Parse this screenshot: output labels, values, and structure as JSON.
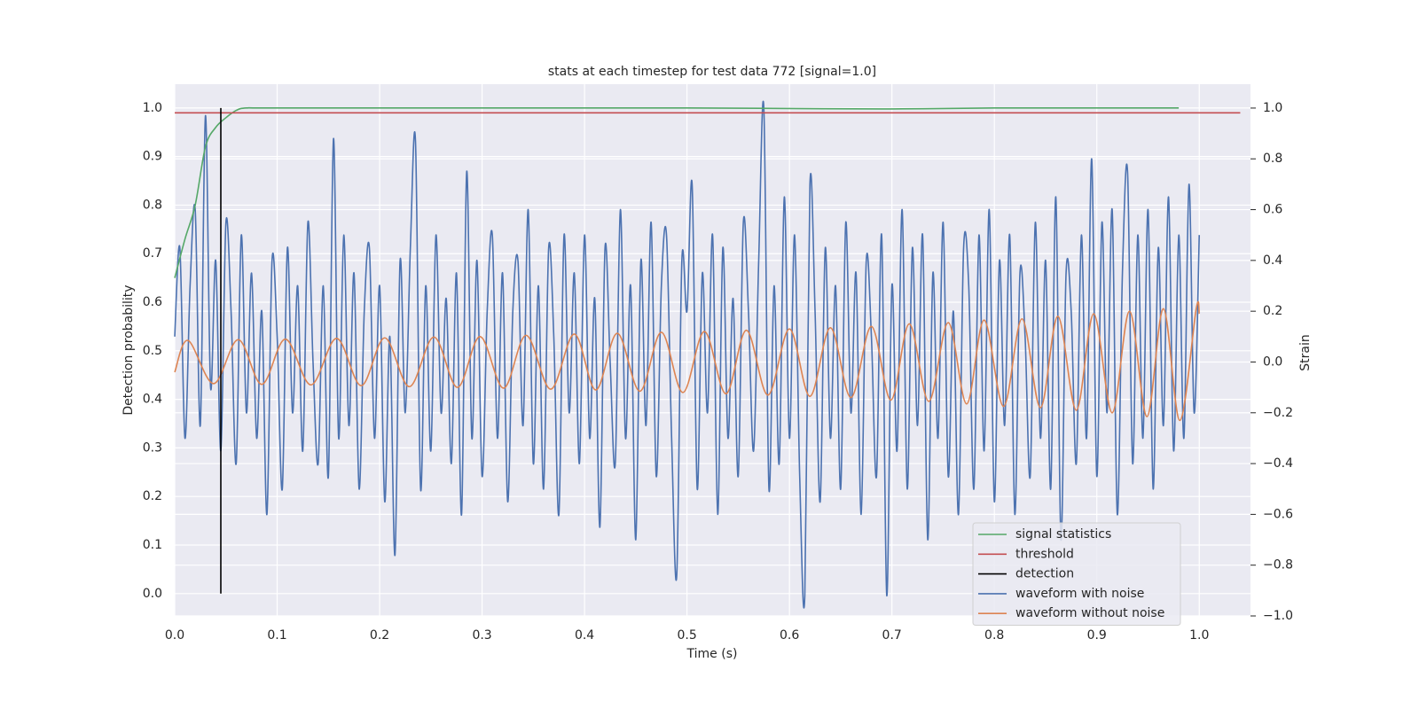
{
  "chart_data": {
    "type": "line",
    "title": "stats at each timestep for test data 772 [signal=1.0]",
    "xlabel": "Time (s)",
    "ylabel": "Detection probability",
    "y2label": "Strain",
    "xlim": [
      0,
      1.05
    ],
    "ylim": [
      -0.046,
      1.049
    ],
    "y2lim": [
      -1.0,
      1.094
    ],
    "xticks": [
      {
        "value": 0,
        "label": "0.0"
      },
      0.1,
      0.2,
      0.3,
      0.4,
      0.5,
      0.6,
      0.7,
      0.8,
      0.9,
      {
        "value": 1,
        "label": "1.0"
      }
    ],
    "yticks": [
      {
        "value": 0,
        "label": "0.0"
      },
      0.1,
      0.2,
      0.3,
      0.4,
      0.5,
      0.6,
      0.7,
      0.8,
      0.9,
      {
        "value": 1,
        "label": "1.0"
      }
    ],
    "y2ticks": [
      {
        "value": -1,
        "label": "−1.0"
      },
      {
        "value": -0.8,
        "label": "−0.8"
      },
      {
        "value": -0.6,
        "label": "−0.6"
      },
      {
        "value": -0.4,
        "label": "−0.4"
      },
      {
        "value": -0.2,
        "label": "−0.2"
      },
      {
        "value": 0,
        "label": "0.0"
      },
      0.2,
      0.4,
      0.6,
      0.8,
      {
        "value": 1,
        "label": "1.0"
      }
    ],
    "grid": true,
    "legend": "lower right",
    "series": [
      {
        "name": "signal statistics",
        "color": "#55a868",
        "x": [
          0,
          0.01,
          0.02,
          0.03,
          0.04,
          0.05,
          0.06,
          0.07,
          0.1,
          0.3,
          0.5,
          0.6,
          0.7,
          0.8,
          0.98
        ],
        "values": [
          0.65,
          0.73,
          0.8,
          0.92,
          0.96,
          0.98,
          0.995,
          1.0,
          1.0,
          1.0,
          1.0,
          0.999,
          0.998,
          1.0,
          1.0
        ]
      },
      {
        "name": "threshold",
        "color": "#c44e52",
        "x": [
          0,
          1.04
        ],
        "values": [
          0.99,
          0.99
        ]
      },
      {
        "name": "detection",
        "color": "#000000",
        "x": [
          0.045,
          0.045
        ],
        "values": [
          0,
          1
        ]
      },
      {
        "name": "waveform with noise",
        "color": "#4c72b0",
        "axis": "y2",
        "x": [
          0,
          0.005,
          0.01,
          0.015,
          0.02,
          0.025,
          0.03,
          0.035,
          0.04,
          0.045,
          0.05,
          0.055,
          0.06,
          0.065,
          0.07,
          0.075,
          0.08,
          0.085,
          0.09,
          0.095,
          0.1,
          0.105,
          0.11,
          0.115,
          0.12,
          0.125,
          0.13,
          0.135,
          0.14,
          0.145,
          0.15,
          0.155,
          0.16,
          0.165,
          0.17,
          0.175,
          0.18,
          0.185,
          0.19,
          0.195,
          0.2,
          0.205,
          0.21,
          0.215,
          0.22,
          0.225,
          0.23,
          0.235,
          0.24,
          0.245,
          0.25,
          0.255,
          0.26,
          0.265,
          0.27,
          0.275,
          0.28,
          0.285,
          0.29,
          0.295,
          0.3,
          0.305,
          0.31,
          0.315,
          0.32,
          0.325,
          0.33,
          0.335,
          0.34,
          0.345,
          0.35,
          0.355,
          0.36,
          0.365,
          0.37,
          0.375,
          0.38,
          0.385,
          0.39,
          0.395,
          0.4,
          0.405,
          0.41,
          0.415,
          0.42,
          0.425,
          0.43,
          0.435,
          0.44,
          0.445,
          0.45,
          0.455,
          0.46,
          0.465,
          0.47,
          0.475,
          0.48,
          0.485,
          0.49,
          0.495,
          0.5,
          0.505,
          0.51,
          0.515,
          0.52,
          0.525,
          0.53,
          0.535,
          0.54,
          0.545,
          0.55,
          0.555,
          0.56,
          0.565,
          0.57,
          0.575,
          0.58,
          0.585,
          0.59,
          0.595,
          0.6,
          0.605,
          0.61,
          0.615,
          0.62,
          0.625,
          0.63,
          0.635,
          0.64,
          0.645,
          0.65,
          0.655,
          0.66,
          0.665,
          0.67,
          0.675,
          0.68,
          0.685,
          0.69,
          0.695,
          0.7,
          0.705,
          0.71,
          0.715,
          0.72,
          0.725,
          0.73,
          0.735,
          0.74,
          0.745,
          0.75,
          0.755,
          0.76,
          0.765,
          0.77,
          0.775,
          0.78,
          0.785,
          0.79,
          0.795,
          0.8,
          0.805,
          0.81,
          0.815,
          0.82,
          0.825,
          0.83,
          0.835,
          0.84,
          0.845,
          0.85,
          0.855,
          0.86,
          0.865,
          0.87,
          0.875,
          0.88,
          0.885,
          0.89,
          0.895,
          0.9,
          0.905,
          0.91,
          0.915,
          0.92,
          0.925,
          0.93,
          0.935,
          0.94,
          0.945,
          0.95,
          0.955,
          0.96,
          0.965,
          0.97,
          0.975,
          0.98,
          0.985,
          0.99,
          0.995,
          1.0
        ],
        "values": [
          0.1,
          0.45,
          -0.3,
          0.3,
          0.6,
          -0.25,
          0.97,
          -0.1,
          0.4,
          -0.35,
          0.55,
          0.2,
          -0.4,
          0.5,
          -0.2,
          0.35,
          -0.3,
          0.2,
          -0.6,
          0.4,
          0.1,
          -0.5,
          0.45,
          -0.2,
          0.3,
          -0.35,
          0.55,
          0.0,
          -0.4,
          0.3,
          -0.45,
          0.88,
          -0.3,
          0.5,
          -0.25,
          0.35,
          -0.5,
          0.2,
          0.45,
          -0.3,
          0.3,
          -0.55,
          0.1,
          -0.76,
          0.4,
          -0.2,
          0.45,
          0.87,
          -0.5,
          0.3,
          -0.35,
          0.5,
          -0.2,
          0.25,
          -0.4,
          0.35,
          -0.6,
          0.75,
          -0.3,
          0.4,
          -0.45,
          0.2,
          0.5,
          -0.3,
          0.35,
          -0.55,
          0.2,
          0.4,
          -0.25,
          0.6,
          -0.4,
          0.3,
          -0.5,
          0.45,
          0.1,
          -0.6,
          0.5,
          -0.2,
          0.35,
          -0.4,
          0.5,
          -0.3,
          0.25,
          -0.65,
          0.45,
          0.0,
          -0.4,
          0.6,
          -0.3,
          0.3,
          -0.7,
          0.4,
          -0.25,
          0.55,
          -0.45,
          0.3,
          0.5,
          -0.3,
          -0.84,
          0.4,
          0.2,
          0.7,
          -0.5,
          0.35,
          -0.2,
          0.5,
          -0.6,
          0.45,
          -0.3,
          0.25,
          -0.45,
          0.55,
          0.2,
          -0.35,
          0.4,
          1.0,
          -0.5,
          0.3,
          -0.4,
          0.65,
          -0.3,
          0.5,
          -0.45,
          -0.92,
          0.7,
          0.2,
          -0.55,
          0.45,
          -0.3,
          0.3,
          -0.5,
          0.55,
          -0.2,
          0.35,
          -0.6,
          0.4,
          0.1,
          -0.45,
          0.5,
          -0.92,
          0.3,
          -0.35,
          0.6,
          -0.5,
          0.45,
          -0.25,
          0.5,
          -0.7,
          0.35,
          -0.3,
          0.55,
          -0.45,
          0.2,
          -0.6,
          0.45,
          0.3,
          -0.5,
          0.5,
          -0.35,
          0.6,
          -0.55,
          0.4,
          -0.25,
          0.5,
          -0.6,
          0.35,
          0.1,
          -0.45,
          0.55,
          -0.3,
          0.4,
          -0.5,
          0.65,
          -0.7,
          0.35,
          0.2,
          -0.4,
          0.5,
          -0.3,
          0.8,
          -0.45,
          0.55,
          -0.2,
          0.6,
          -0.6,
          0.35,
          0.75,
          -0.4,
          0.5,
          -0.3,
          0.6,
          -0.5,
          0.45,
          -0.25,
          0.65,
          -0.35,
          0.5,
          -0.3,
          0.7,
          -0.2,
          0.5
        ]
      },
      {
        "name": "waveform without noise",
        "color": "#dd8452",
        "axis": "y2",
        "x": [
          0,
          0.013,
          0.038,
          0.062,
          0.085,
          0.108,
          0.133,
          0.158,
          0.182,
          0.205,
          0.229,
          0.253,
          0.276,
          0.298,
          0.321,
          0.343,
          0.367,
          0.39,
          0.411,
          0.432,
          0.454,
          0.475,
          0.496,
          0.517,
          0.538,
          0.558,
          0.579,
          0.6,
          0.62,
          0.64,
          0.66,
          0.68,
          0.699,
          0.717,
          0.736,
          0.755,
          0.773,
          0.79,
          0.809,
          0.827,
          0.845,
          0.862,
          0.88,
          0.897,
          0.915,
          0.932,
          0.949,
          0.965,
          0.981,
          0.997,
          1.0
        ],
        "values": [
          -0.04,
          0.085,
          -0.085,
          0.088,
          -0.088,
          0.09,
          -0.09,
          0.093,
          -0.093,
          0.095,
          -0.097,
          0.098,
          -0.1,
          0.1,
          -0.103,
          0.105,
          -0.107,
          0.11,
          -0.11,
          0.113,
          -0.115,
          0.117,
          -0.12,
          0.12,
          -0.125,
          0.125,
          -0.13,
          0.13,
          -0.135,
          0.135,
          -0.14,
          0.14,
          -0.15,
          0.15,
          -0.155,
          0.155,
          -0.165,
          0.165,
          -0.175,
          0.17,
          -0.18,
          0.18,
          -0.19,
          0.19,
          -0.2,
          0.2,
          -0.215,
          0.21,
          -0.23,
          0.21,
          0.19
        ]
      }
    ]
  }
}
